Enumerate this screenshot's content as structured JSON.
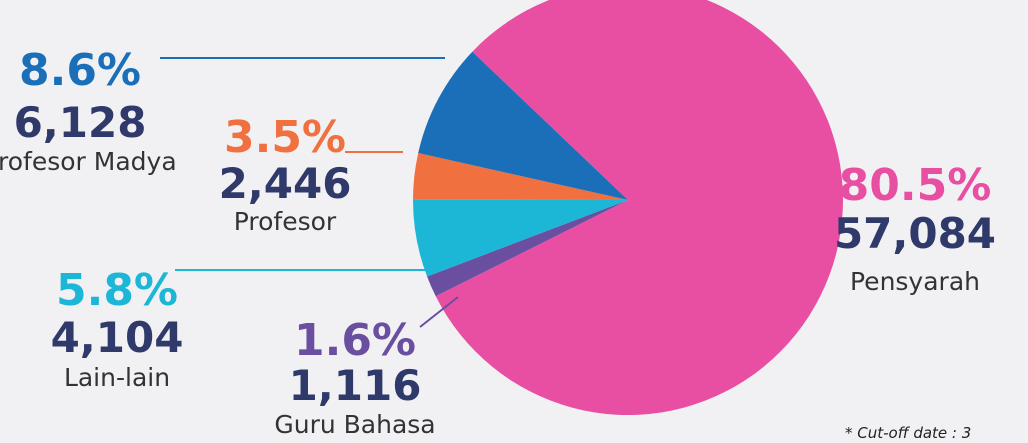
{
  "chart_data": {
    "type": "pie",
    "categories": [
      "Pensyarah",
      "Guru Bahasa",
      "Lain-lain",
      "Profesor",
      "Profesor Madya"
    ],
    "values": [
      80.5,
      1.6,
      5.8,
      3.5,
      8.6
    ],
    "value_labels": [
      "80.5%",
      "1.6%",
      "5.8%",
      "3.5%",
      "8.6%"
    ],
    "counts": [
      "57,084",
      "1,116",
      "4,104",
      "2,446",
      "6,128"
    ],
    "colors": [
      "#e84fa3",
      "#6a4fa0",
      "#1cb6d6",
      "#f07040",
      "#1a6fb8"
    ],
    "footnote": "* Cut-off date  : 3"
  }
}
